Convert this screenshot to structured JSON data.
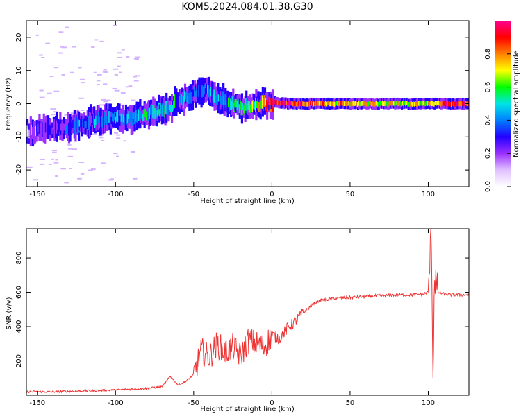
{
  "title": "KOM5.2024.084.01.38.G30",
  "chart_data": [
    {
      "type": "heatmap",
      "xlabel": "Height of straight line (km)",
      "ylabel": "Frequency (Hz)",
      "xlim": [
        -157,
        126
      ],
      "ylim": [
        -25,
        25
      ],
      "xticks": [
        -150,
        -100,
        -50,
        0,
        50,
        100
      ],
      "yticks": [
        -20,
        -10,
        0,
        10,
        20
      ],
      "colorbar": {
        "label": "Normalized spectral amplitude",
        "range": [
          0,
          1
        ],
        "ticks": [
          0.0,
          0.2,
          0.4,
          0.6,
          0.8
        ],
        "colormap": [
          "#ffffff",
          "#e0c0ff",
          "#9b30ff",
          "#2200ff",
          "#0080ff",
          "#00e5e5",
          "#00ff00",
          "#ffff00",
          "#ff8000",
          "#ff0000",
          "#ff0090"
        ]
      },
      "ridge": {
        "x": [
          -157,
          -150,
          -140,
          -130,
          -120,
          -110,
          -100,
          -90,
          -80,
          -70,
          -62,
          -56,
          -50,
          -45,
          -40,
          -35,
          -30,
          -25,
          -20,
          -15,
          -10,
          -5,
          0,
          10,
          20,
          40,
          60,
          80,
          100,
          110,
          126
        ],
        "frequency": [
          -8.5,
          -8,
          -7.5,
          -7,
          -6,
          -5,
          -4.5,
          -4,
          -3,
          -2,
          0,
          1.5,
          3,
          4,
          3.5,
          1.5,
          0.5,
          -0.5,
          -1,
          -1,
          -0.5,
          0,
          0.5,
          0,
          0,
          0,
          0,
          0,
          0,
          0,
          0
        ],
        "amplitude": [
          0.15,
          0.2,
          0.25,
          0.3,
          0.35,
          0.4,
          0.4,
          0.45,
          0.5,
          0.5,
          0.45,
          0.4,
          0.35,
          0.35,
          0.4,
          0.45,
          0.45,
          0.5,
          0.55,
          0.6,
          0.7,
          0.8,
          0.95,
          0.9,
          0.85,
          0.75,
          0.7,
          0.7,
          0.7,
          0.85,
          0.9
        ]
      }
    },
    {
      "type": "line",
      "xlabel": "Height of straight line (km)",
      "ylabel": "SNR (v/v)",
      "xlim": [
        -157,
        126
      ],
      "ylim": [
        0,
        970
      ],
      "xticks": [
        -150,
        -100,
        -50,
        0,
        50,
        100
      ],
      "yticks": [
        200,
        400,
        600,
        800
      ],
      "series": [
        {
          "color": "#ee3333",
          "x": [
            -157,
            -140,
            -120,
            -100,
            -90,
            -80,
            -70,
            -65,
            -60,
            -55,
            -50,
            -45,
            -40,
            -35,
            -30,
            -25,
            -20,
            -15,
            -10,
            -5,
            0,
            5,
            10,
            15,
            20,
            25,
            30,
            40,
            50,
            60,
            70,
            80,
            90,
            97,
            100,
            102,
            103,
            104,
            106,
            110,
            115,
            126
          ],
          "values": [
            20,
            20,
            25,
            30,
            35,
            40,
            50,
            110,
            60,
            80,
            120,
            260,
            220,
            300,
            250,
            280,
            230,
            320,
            300,
            280,
            350,
            330,
            390,
            430,
            480,
            520,
            550,
            565,
            570,
            575,
            580,
            585,
            585,
            590,
            600,
            950,
            100,
            700,
            600,
            590,
            585,
            585
          ]
        }
      ]
    }
  ]
}
